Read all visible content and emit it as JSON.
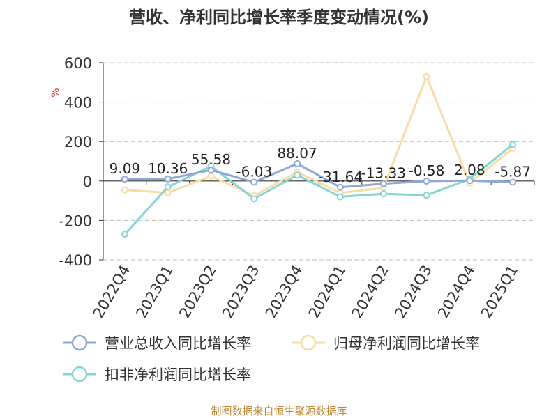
{
  "chart_data": {
    "type": "line",
    "title": "营收、净利同比增长率季度变动情况(%)",
    "ylabel": "%",
    "categories": [
      "2022Q4",
      "2023Q1",
      "2023Q2",
      "2023Q3",
      "2023Q4",
      "2024Q1",
      "2024Q2",
      "2024Q3",
      "2024Q4",
      "2025Q1"
    ],
    "ylim": [
      -400,
      600
    ],
    "yticks": [
      600,
      400,
      200,
      0,
      -200,
      -400
    ],
    "grid": true,
    "legend_position": "bottom",
    "series": [
      {
        "name": "营业总收入同比增长率",
        "color": "#8fa8d8",
        "values": [
          9.09,
          10.36,
          55.58,
          -6.03,
          88.07,
          -31.64,
          -13.33,
          -0.58,
          2.08,
          -5.87
        ],
        "labels": [
          "9.09",
          "10.36",
          "55.58",
          "-6.03",
          "88.07",
          "-31.64",
          "-13.33",
          "-0.58",
          "2.08",
          "-5.87"
        ]
      },
      {
        "name": "归母净利润同比增长率",
        "color": "#f9dca4",
        "values": [
          -45,
          -60,
          25,
          -75,
          45,
          -60,
          -35,
          530,
          -10,
          165
        ]
      },
      {
        "name": "扣非净利润同比增长率",
        "color": "#86d4d4",
        "values": [
          -270,
          -30,
          75,
          -90,
          30,
          -80,
          -65,
          -72,
          10,
          185
        ]
      }
    ]
  },
  "source": "制图数据来自恒生聚源数据库"
}
